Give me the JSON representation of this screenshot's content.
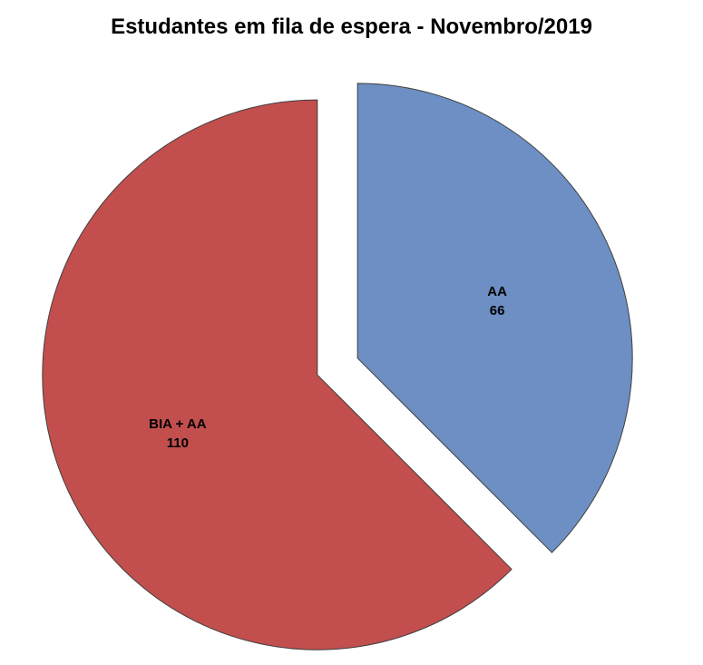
{
  "title": "Estudantes em fila de espera - Novembro/2019",
  "chart_data": {
    "type": "pie",
    "title": "Estudantes em fila de espera - Novembro/2019",
    "slices": [
      {
        "label": "AA",
        "value": 66,
        "color": "#6d8fc3"
      },
      {
        "label": "BIA + AA",
        "value": 110,
        "color": "#c24f4e"
      }
    ],
    "total": 176,
    "start_angle": "12 o'clock, clockwise",
    "exploded": true,
    "legend": "none",
    "data_labels": "label and value inside each slice",
    "background": "#ffffff",
    "slice_border_color": "#3f3f3f"
  }
}
